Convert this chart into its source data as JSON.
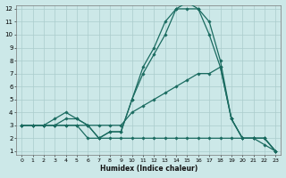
{
  "title": "",
  "xlabel": "Humidex (Indice chaleur)",
  "xlim": [
    0,
    23
  ],
  "ylim": [
    1,
    12
  ],
  "xticks": [
    0,
    1,
    2,
    3,
    4,
    5,
    6,
    7,
    8,
    9,
    10,
    11,
    12,
    13,
    14,
    15,
    16,
    17,
    18,
    19,
    20,
    21,
    22,
    23
  ],
  "yticks": [
    1,
    2,
    3,
    4,
    5,
    6,
    7,
    8,
    9,
    10,
    11,
    12
  ],
  "background_color": "#cce8e8",
  "grid_color": "#aacccc",
  "line_color": "#1a6b60",
  "series": [
    {
      "x": [
        0,
        1,
        2,
        3,
        4,
        5,
        6,
        7,
        8,
        9,
        10,
        11,
        12,
        13,
        14,
        15,
        16,
        17,
        18,
        19,
        20,
        21,
        22,
        23
      ],
      "y": [
        3,
        3,
        3,
        3,
        3,
        3,
        2,
        2,
        2,
        2,
        2,
        2,
        2,
        2,
        2,
        2,
        2,
        2,
        2,
        2,
        2,
        2,
        2,
        1
      ]
    },
    {
      "x": [
        0,
        1,
        2,
        3,
        4,
        5,
        6,
        7,
        8,
        9,
        10,
        11,
        12,
        13,
        14,
        15,
        16,
        17,
        18,
        19,
        20,
        21,
        22,
        23
      ],
      "y": [
        3,
        3,
        3,
        3,
        3,
        3,
        3,
        3,
        3,
        3,
        4,
        4.5,
        5,
        5.5,
        6,
        6.5,
        7,
        7,
        7.5,
        3.5,
        2,
        2,
        2,
        1
      ]
    },
    {
      "x": [
        0,
        1,
        2,
        3,
        4,
        5,
        6,
        7,
        8,
        9,
        10,
        11,
        12,
        13,
        14,
        15,
        16,
        17,
        18,
        19,
        20,
        21,
        22,
        23
      ],
      "y": [
        3,
        3,
        3,
        3,
        3.5,
        3.5,
        3,
        2,
        2.5,
        2.5,
        5,
        7,
        8.5,
        10,
        12,
        12,
        12,
        10,
        7.5,
        3.5,
        2,
        2,
        1.5,
        1
      ]
    },
    {
      "x": [
        0,
        1,
        2,
        3,
        4,
        5,
        6,
        7,
        8,
        9,
        10,
        11,
        12,
        13,
        14,
        15,
        16,
        17,
        18,
        19,
        20,
        21,
        22,
        23
      ],
      "y": [
        3,
        3,
        3,
        3.5,
        4,
        3.5,
        3,
        2,
        2.5,
        2.5,
        5,
        7.5,
        9,
        11,
        12,
        12.5,
        12,
        11,
        8,
        3.5,
        2,
        2,
        2,
        1
      ]
    }
  ]
}
